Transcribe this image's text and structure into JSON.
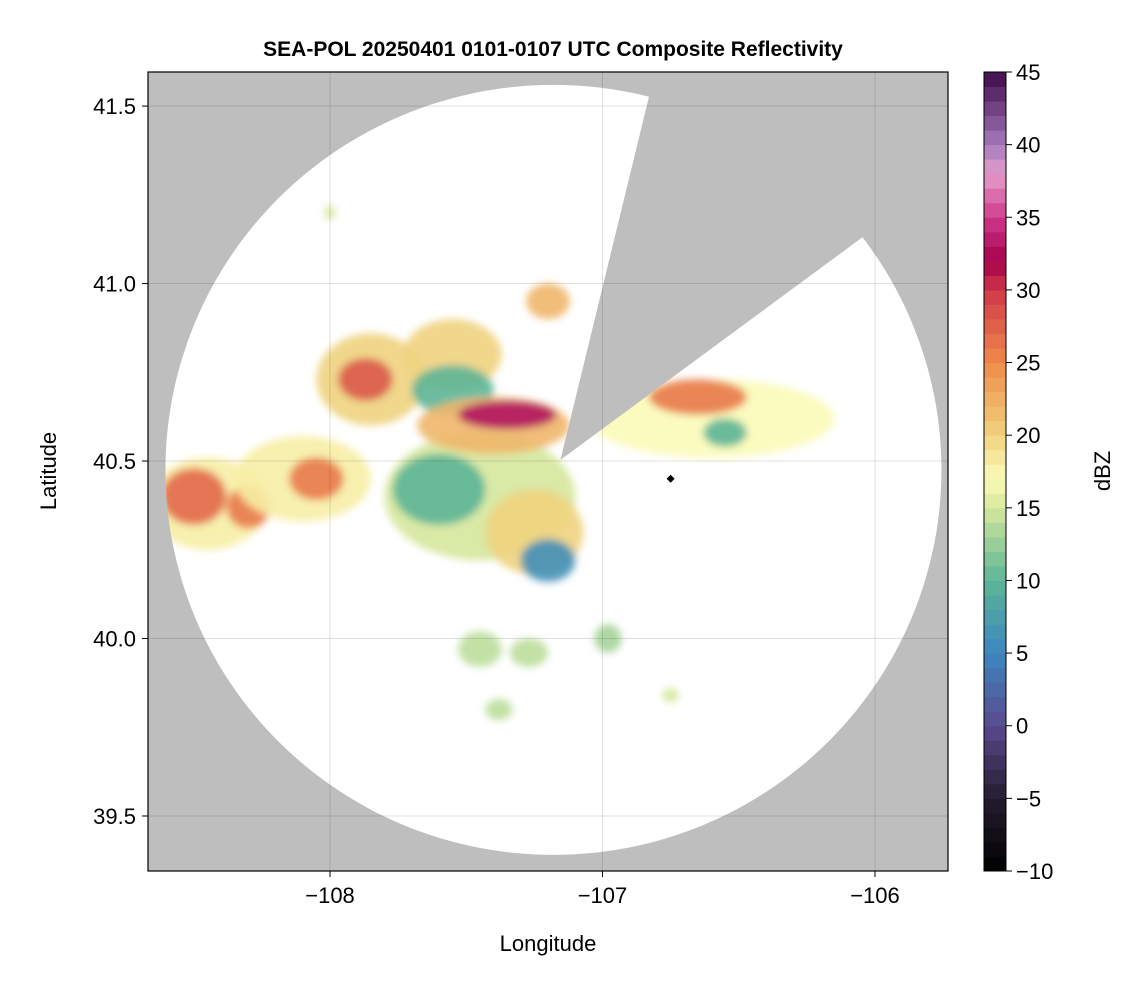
{
  "chart_data": {
    "type": "heatmap",
    "title": "SEA-POL 20250401 0101-0107 UTC Composite Reflectivity",
    "xlabel": "Longitude",
    "ylabel": "Latitude",
    "xlim": [
      -108.668,
      -105.732
    ],
    "ylim": [
      39.345,
      41.596
    ],
    "xticks": [
      -108,
      -107,
      -106
    ],
    "xtick_labels": [
      "−108",
      "−107",
      "−106"
    ],
    "yticks": [
      39.5,
      40.0,
      40.5,
      41.0,
      41.5
    ],
    "ytick_labels": [
      "39.5",
      "40.0",
      "40.5",
      "41.0",
      "41.5"
    ],
    "grid": true,
    "colorbar": {
      "label": "dBZ",
      "range": [
        -10,
        45
      ],
      "ticks": [
        -10,
        -5,
        0,
        5,
        10,
        15,
        20,
        25,
        30,
        35,
        40,
        45
      ],
      "tick_labels": [
        "−10",
        "−5",
        "0",
        "5",
        "10",
        "15",
        "20",
        "25",
        "30",
        "35",
        "40",
        "45"
      ],
      "stops": [
        [
          -10,
          "#000000"
        ],
        [
          -5,
          "#231c2e"
        ],
        [
          0,
          "#5a4a8e"
        ],
        [
          5,
          "#3d86c0"
        ],
        [
          10,
          "#5cb597"
        ],
        [
          15,
          "#d5e79c"
        ],
        [
          17,
          "#fbfbb8"
        ],
        [
          20,
          "#f0d37f"
        ],
        [
          25,
          "#ef8a4a"
        ],
        [
          30,
          "#d0384a"
        ],
        [
          32,
          "#a4004c"
        ],
        [
          35,
          "#d13a8b"
        ],
        [
          38,
          "#e59ecd"
        ],
        [
          40,
          "#a57abb"
        ],
        [
          45,
          "#3e0a4a"
        ]
      ]
    },
    "mask_color": "#bebebe",
    "radar_site": {
      "lon": -107.18,
      "lat": 40.475
    },
    "marker": {
      "lon": -106.75,
      "lat": 40.45
    },
    "cells": [
      {
        "lon": -108.45,
        "lat": 40.38,
        "rlon": 0.22,
        "rlat": 0.13,
        "dbz": 18
      },
      {
        "lon": -108.5,
        "lat": 40.4,
        "rlon": 0.12,
        "rlat": 0.08,
        "dbz": 27
      },
      {
        "lon": -108.3,
        "lat": 40.37,
        "rlon": 0.08,
        "rlat": 0.06,
        "dbz": 26
      },
      {
        "lon": -108.1,
        "lat": 40.45,
        "rlon": 0.25,
        "rlat": 0.12,
        "dbz": 18
      },
      {
        "lon": -108.05,
        "lat": 40.45,
        "rlon": 0.1,
        "rlat": 0.06,
        "dbz": 26
      },
      {
        "lon": -107.85,
        "lat": 40.73,
        "rlon": 0.2,
        "rlat": 0.13,
        "dbz": 20
      },
      {
        "lon": -107.87,
        "lat": 40.73,
        "rlon": 0.1,
        "rlat": 0.06,
        "dbz": 28
      },
      {
        "lon": -107.55,
        "lat": 40.8,
        "rlon": 0.18,
        "rlat": 0.1,
        "dbz": 20
      },
      {
        "lon": -107.55,
        "lat": 40.7,
        "rlon": 0.15,
        "rlat": 0.07,
        "dbz": 10
      },
      {
        "lon": -107.45,
        "lat": 40.4,
        "rlon": 0.35,
        "rlat": 0.18,
        "dbz": 15
      },
      {
        "lon": -107.6,
        "lat": 40.42,
        "rlon": 0.17,
        "rlat": 0.1,
        "dbz": 10
      },
      {
        "lon": -107.4,
        "lat": 40.6,
        "rlon": 0.28,
        "rlat": 0.08,
        "dbz": 22
      },
      {
        "lon": -107.35,
        "lat": 40.63,
        "rlon": 0.18,
        "rlat": 0.04,
        "dbz": 33
      },
      {
        "lon": -107.25,
        "lat": 40.3,
        "rlon": 0.18,
        "rlat": 0.12,
        "dbz": 20
      },
      {
        "lon": -107.2,
        "lat": 40.22,
        "rlon": 0.1,
        "rlat": 0.06,
        "dbz": 6
      },
      {
        "lon": -107.2,
        "lat": 40.95,
        "rlon": 0.08,
        "rlat": 0.05,
        "dbz": 22
      },
      {
        "lon": -106.6,
        "lat": 40.62,
        "rlon": 0.45,
        "rlat": 0.11,
        "dbz": 17
      },
      {
        "lon": -106.65,
        "lat": 40.68,
        "rlon": 0.18,
        "rlat": 0.05,
        "dbz": 26
      },
      {
        "lon": -106.55,
        "lat": 40.58,
        "rlon": 0.08,
        "rlat": 0.04,
        "dbz": 10
      },
      {
        "lon": -107.45,
        "lat": 39.97,
        "rlon": 0.08,
        "rlat": 0.05,
        "dbz": 14
      },
      {
        "lon": -107.27,
        "lat": 39.96,
        "rlon": 0.07,
        "rlat": 0.04,
        "dbz": 14
      },
      {
        "lon": -106.98,
        "lat": 40.0,
        "rlon": 0.05,
        "rlat": 0.04,
        "dbz": 13
      },
      {
        "lon": -107.38,
        "lat": 39.8,
        "rlon": 0.05,
        "rlat": 0.03,
        "dbz": 14
      },
      {
        "lon": -108.0,
        "lat": 41.2,
        "rlon": 0.02,
        "rlat": 0.02,
        "dbz": 15
      },
      {
        "lon": -106.75,
        "lat": 39.84,
        "rlon": 0.03,
        "rlat": 0.02,
        "dbz": 15
      }
    ]
  }
}
